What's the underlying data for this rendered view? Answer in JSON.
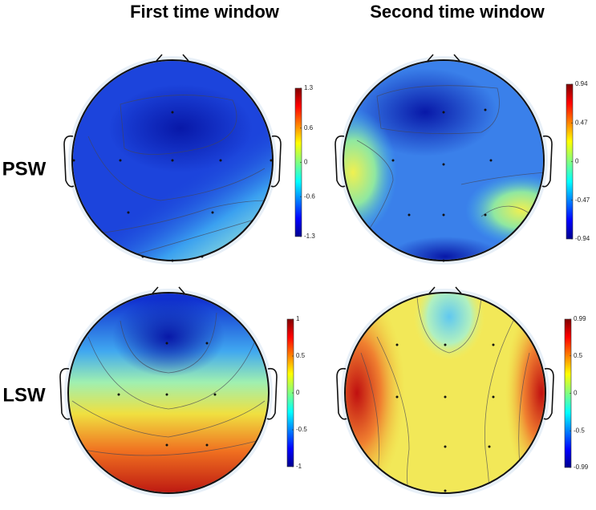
{
  "figure": {
    "columns": [
      "First time window",
      "Second time window"
    ],
    "rows": [
      "PSW",
      "LSW"
    ],
    "panels": [
      {
        "colorbar_ticks": [
          1.3,
          0.6,
          0,
          -0.6,
          -1.3
        ]
      },
      {
        "colorbar_ticks": [
          0.94,
          0.47,
          0,
          -0.47,
          -0.94
        ]
      },
      {
        "colorbar_ticks": [
          1,
          0.5,
          0,
          -0.5,
          -1
        ]
      },
      {
        "colorbar_ticks": [
          0.99,
          0.5,
          0,
          -0.5,
          -0.99
        ]
      }
    ]
  }
}
